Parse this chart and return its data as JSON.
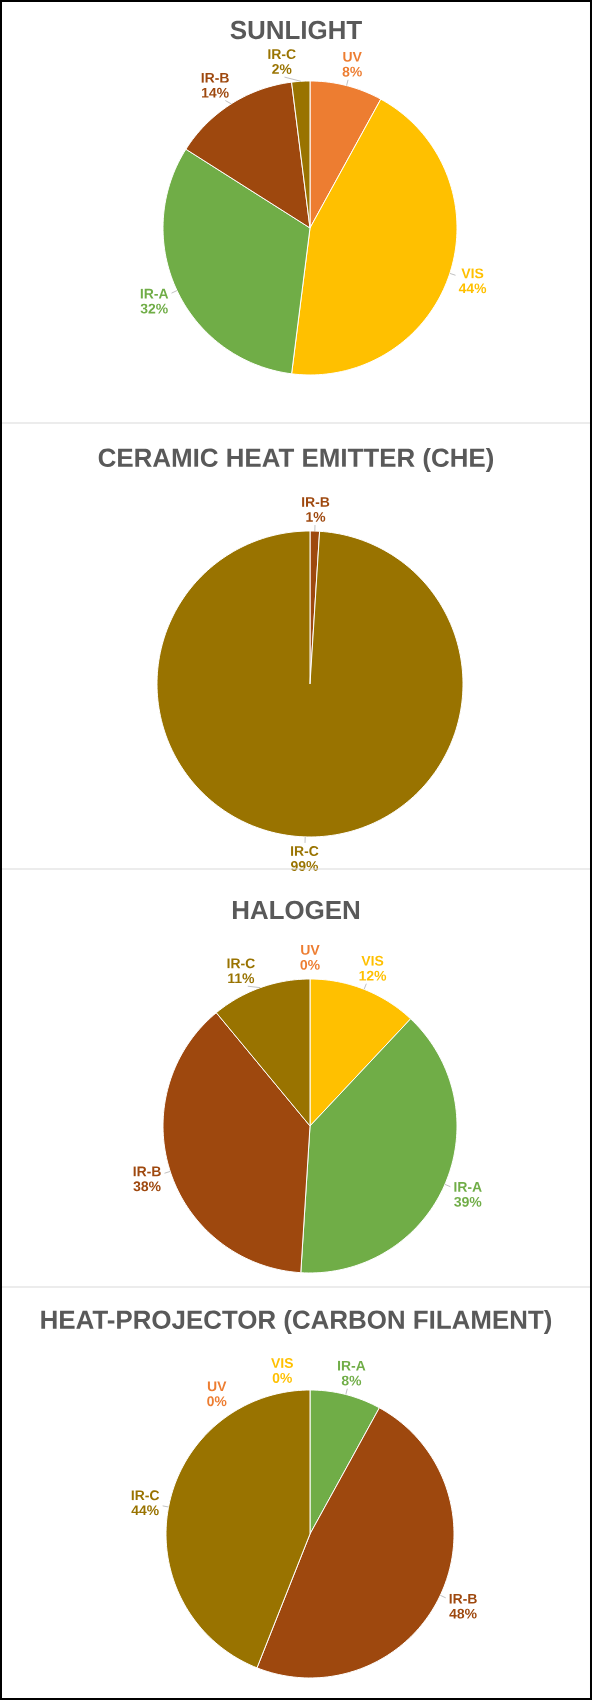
{
  "chart_data": [
    {
      "type": "pie",
      "title": "SUNLIGHT",
      "categories": [
        "UV",
        "VIS",
        "IR-A",
        "IR-B",
        "IR-C"
      ],
      "values": [
        8,
        44,
        32,
        14,
        2
      ],
      "value_labels": [
        "8%",
        "44%",
        "32%",
        "14%",
        "2%"
      ],
      "colors": [
        "#ed7d31",
        "#ffc000",
        "#70ad47",
        "#9e480e",
        "#997300"
      ]
    },
    {
      "type": "pie",
      "title": "CERAMIC HEAT EMITTER (CHE)",
      "categories": [
        "IR-B",
        "IR-C"
      ],
      "values": [
        1,
        99
      ],
      "value_labels": [
        "1%",
        "99%"
      ],
      "colors": [
        "#9e480e",
        "#997300"
      ]
    },
    {
      "type": "pie",
      "title": "HALOGEN",
      "categories": [
        "UV",
        "VIS",
        "IR-A",
        "IR-B",
        "IR-C"
      ],
      "values": [
        0,
        12,
        39,
        38,
        11
      ],
      "value_labels": [
        "0%",
        "12%",
        "39%",
        "38%",
        "11%"
      ],
      "colors": [
        "#ed7d31",
        "#ffc000",
        "#70ad47",
        "#9e480e",
        "#997300"
      ]
    },
    {
      "type": "pie",
      "title": "HEAT-PROJECTOR (CARBON FILAMENT)",
      "categories": [
        "IR-A",
        "IR-B",
        "IR-C",
        "UV",
        "VIS"
      ],
      "values": [
        8,
        48,
        44,
        0,
        0
      ],
      "value_labels": [
        "8%",
        "48%",
        "44%",
        "0%",
        "0%"
      ],
      "colors": [
        "#70ad47",
        "#9e480e",
        "#997300",
        "#ed7d31",
        "#ffc000"
      ]
    }
  ]
}
